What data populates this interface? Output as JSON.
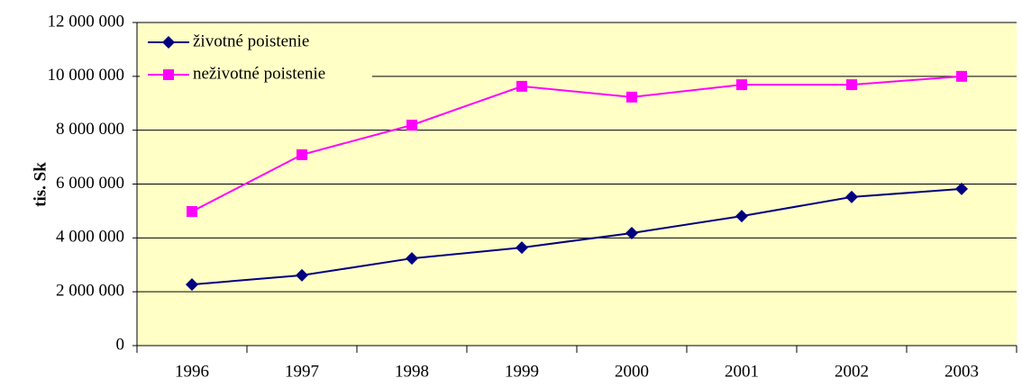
{
  "chart_data": {
    "type": "line",
    "ylabel": "tis. Sk",
    "categories": [
      "1996",
      "1997",
      "1998",
      "1999",
      "2000",
      "2001",
      "2002",
      "2003"
    ],
    "series": [
      {
        "name": "životné poistenie",
        "color": "#000080",
        "marker": "diamond",
        "values": [
          2270000,
          2610000,
          3240000,
          3640000,
          4180000,
          4810000,
          5520000,
          5820000
        ]
      },
      {
        "name": "neživotné poistenie",
        "color": "#ff00ff",
        "marker": "square",
        "values": [
          4980000,
          7090000,
          8190000,
          9630000,
          9230000,
          9690000,
          9690000,
          10000000
        ]
      }
    ],
    "ylim": [
      0,
      12000000
    ],
    "yticks": [
      0,
      {
        "value": 2000000,
        "label": "2 000 000"
      },
      {
        "value": 4000000,
        "label": "4 000 000"
      },
      {
        "value": 6000000,
        "label": "6 000 000"
      },
      {
        "value": 8000000,
        "label": "8 000 000"
      },
      {
        "value": 10000000,
        "label": "10 000 000"
      },
      {
        "value": 12000000,
        "label": "12 000 000"
      }
    ],
    "grid": true,
    "legend": "top-left",
    "background": "#ffffc6"
  }
}
